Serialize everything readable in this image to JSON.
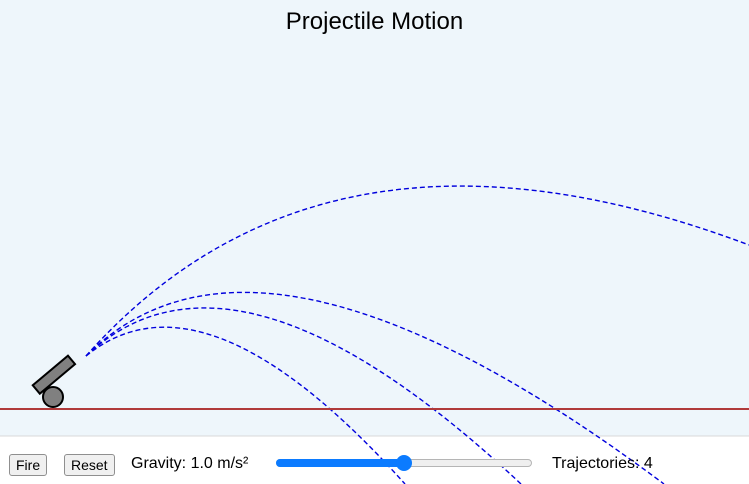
{
  "title": "Projectile Motion",
  "controls": {
    "fire_label": "Fire",
    "reset_label": "Reset",
    "gravity_label": "Gravity: 1.0 m/s²",
    "gravity_slider_fraction": 0.5,
    "trajectories_label": "Trajectories: 4"
  },
  "colors": {
    "sky": "#eef6fb",
    "ground_line": "#b03a3a",
    "trajectory": "#0000dd",
    "cannon_fill": "#808080",
    "accent": "#0b7bff"
  },
  "icons": {
    "cannon": "cannon-icon"
  }
}
